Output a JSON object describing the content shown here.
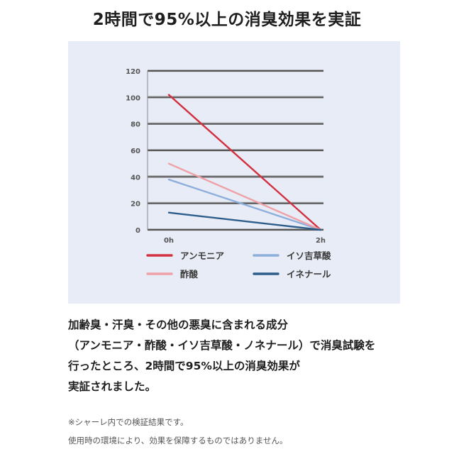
{
  "headline": "2時間で95%以上の消臭効果を実証",
  "chart_data": {
    "type": "line",
    "title": "",
    "xlabel": "",
    "ylabel": "",
    "x": [
      "0h",
      "2h"
    ],
    "ylim": [
      0,
      120
    ],
    "yticks": [
      0,
      20,
      40,
      60,
      80,
      100,
      120
    ],
    "grid": true,
    "legend_position": "bottom",
    "series": [
      {
        "name": "アンモニア",
        "values": [
          102,
          0
        ],
        "color": "#d2303f"
      },
      {
        "name": "イソ吉草酸",
        "values": [
          38,
          0
        ],
        "color": "#8eaedb"
      },
      {
        "name": "酢酸",
        "values": [
          50,
          0
        ],
        "color": "#efa1a8"
      },
      {
        "name": "イネナール",
        "values": [
          13,
          0
        ],
        "color": "#2d5d8a"
      }
    ]
  },
  "body_lines": [
    "加齢臭・汗臭・その他の悪臭に含まれる成分",
    "（アンモニア・酢酸・イソ吉草酸・ノネナール）で消臭試験を",
    "行ったところ、2時間で95%以上の消臭効果が",
    "実証されました。"
  ],
  "notes": [
    "※シャーレ内での検証結果です。",
    "使用時の環境により、効果を保障するものではありません。"
  ]
}
